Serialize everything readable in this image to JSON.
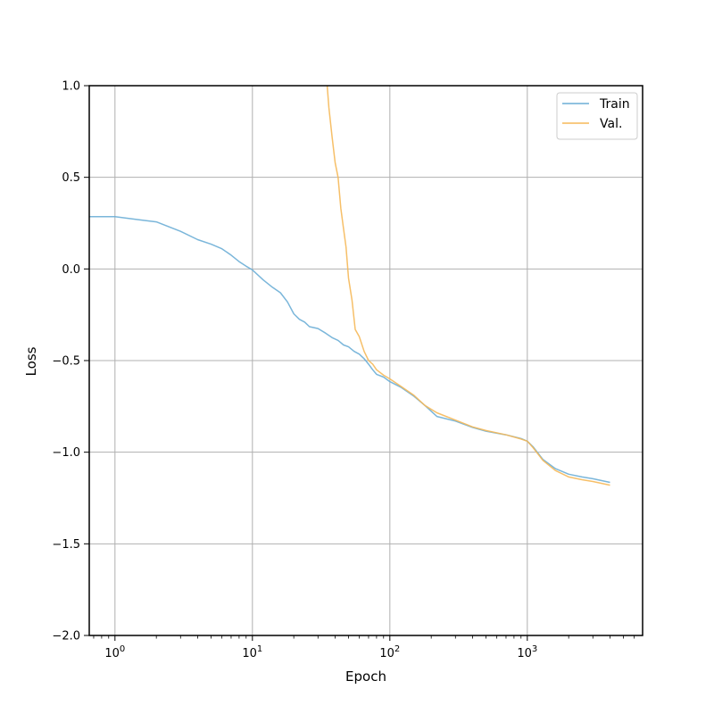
{
  "chart_data": {
    "type": "line",
    "title": "",
    "xlabel": "Epoch",
    "ylabel": "Loss",
    "xscale": "log",
    "xlim": [
      0.65,
      6900
    ],
    "ylim": [
      -2.0,
      1.0
    ],
    "grid": true,
    "legend_position": "top-right",
    "x_major_ticks": [
      {
        "value": 1,
        "base": "10",
        "exp": "0"
      },
      {
        "value": 10,
        "base": "10",
        "exp": "1"
      },
      {
        "value": 100,
        "base": "10",
        "exp": "2"
      },
      {
        "value": 1000,
        "base": "10",
        "exp": "3"
      }
    ],
    "y_ticks": [
      {
        "value": 1.0,
        "label": "1.0"
      },
      {
        "value": 0.5,
        "label": "0.5"
      },
      {
        "value": 0.0,
        "label": "0.0"
      },
      {
        "value": -0.5,
        "label": "−0.5"
      },
      {
        "value": -1.0,
        "label": "−1.0"
      },
      {
        "value": -1.5,
        "label": "−1.5"
      },
      {
        "value": -2.0,
        "label": "−2.0"
      }
    ],
    "series": [
      {
        "name": "Train",
        "color": "#6baed6",
        "x": [
          0.65,
          1,
          1.5,
          2,
          3,
          4,
          5,
          6,
          7,
          8,
          9,
          10,
          12,
          14,
          16,
          18,
          20,
          22,
          24,
          26,
          30,
          34,
          38,
          42,
          46,
          50,
          55,
          60,
          65,
          70,
          75,
          80,
          90,
          100,
          120,
          150,
          180,
          220,
          300,
          400,
          500,
          700,
          900,
          1000,
          1100,
          1300,
          1600,
          2000,
          2500,
          3000,
          4000
        ],
        "y": [
          0.285,
          0.285,
          0.268,
          0.257,
          0.205,
          0.16,
          0.135,
          0.11,
          0.075,
          0.04,
          0.015,
          -0.005,
          -0.06,
          -0.1,
          -0.13,
          -0.18,
          -0.245,
          -0.275,
          -0.29,
          -0.315,
          -0.325,
          -0.35,
          -0.375,
          -0.39,
          -0.415,
          -0.425,
          -0.45,
          -0.465,
          -0.49,
          -0.52,
          -0.55,
          -0.575,
          -0.59,
          -0.615,
          -0.645,
          -0.695,
          -0.745,
          -0.805,
          -0.83,
          -0.865,
          -0.885,
          -0.905,
          -0.925,
          -0.94,
          -0.97,
          -1.04,
          -1.09,
          -1.12,
          -1.135,
          -1.145,
          -1.165
        ]
      },
      {
        "name": "Val.",
        "color": "#f5b858",
        "x": [
          35,
          36,
          38,
          40,
          42,
          44,
          46,
          48,
          50,
          53,
          56,
          60,
          65,
          70,
          75,
          80,
          90,
          100,
          120,
          150,
          180,
          220,
          300,
          400,
          500,
          700,
          900,
          1000,
          1100,
          1300,
          1600,
          2000,
          2500,
          3000,
          4000
        ],
        "y": [
          1.0,
          0.88,
          0.72,
          0.58,
          0.5,
          0.33,
          0.22,
          0.12,
          -0.05,
          -0.17,
          -0.33,
          -0.37,
          -0.45,
          -0.5,
          -0.52,
          -0.55,
          -0.58,
          -0.6,
          -0.64,
          -0.69,
          -0.745,
          -0.785,
          -0.825,
          -0.862,
          -0.882,
          -0.905,
          -0.928,
          -0.94,
          -0.975,
          -1.045,
          -1.1,
          -1.135,
          -1.15,
          -1.16,
          -1.18
        ]
      }
    ]
  }
}
